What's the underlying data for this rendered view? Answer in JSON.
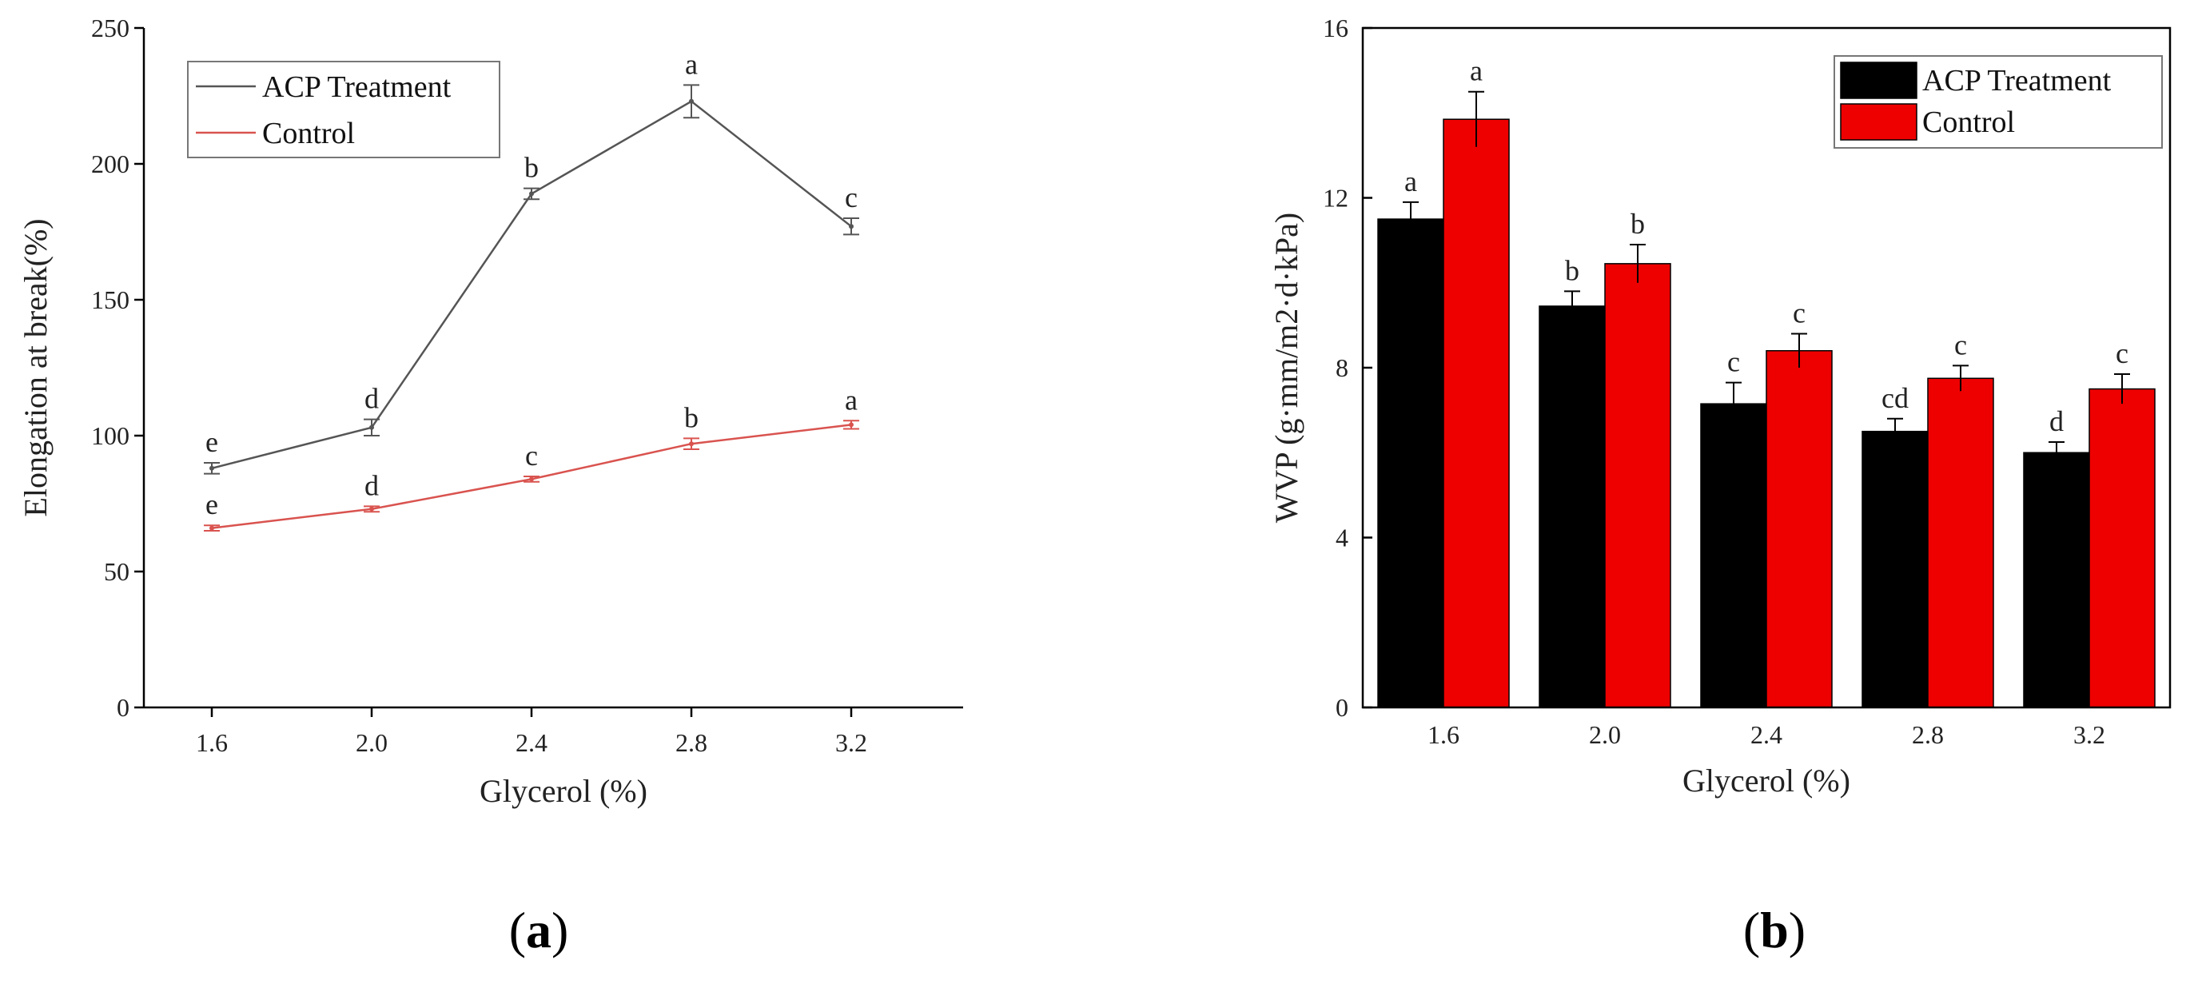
{
  "chart_data": [
    {
      "type": "line",
      "panel_label": "a",
      "xlabel": "Glycerol (%)",
      "ylabel": "Elongation at break(%)",
      "x": [
        "1.6",
        "2.0",
        "2.4",
        "2.8",
        "3.2"
      ],
      "ylim": [
        0,
        250
      ],
      "yticks": [
        0,
        50,
        100,
        150,
        200,
        250
      ],
      "grid": false,
      "legend_position": "top-left",
      "series": [
        {
          "name": "ACP Treatment",
          "color": "#555555",
          "values": [
            88,
            103,
            189,
            223,
            177
          ],
          "errors": [
            2,
            3,
            2,
            6,
            3
          ],
          "letters": [
            "e",
            "d",
            "b",
            "a",
            "c"
          ]
        },
        {
          "name": "Control",
          "color": "#d9534f",
          "values": [
            66,
            73,
            84,
            97,
            104
          ],
          "errors": [
            1,
            1,
            1,
            2,
            1.5
          ],
          "letters": [
            "e",
            "d",
            "c",
            "b",
            "a"
          ]
        }
      ]
    },
    {
      "type": "bar",
      "panel_label": "b",
      "xlabel": "Glycerol (%)",
      "ylabel": "WVP (g·mm/m2·d·kPa)",
      "categories": [
        "1.6",
        "2.0",
        "2.4",
        "2.8",
        "3.2"
      ],
      "ylim": [
        0,
        16
      ],
      "yticks": [
        0,
        4,
        8,
        12,
        16
      ],
      "grid": false,
      "legend_position": "top-right",
      "series": [
        {
          "name": "ACP Treatment",
          "color": "#000000",
          "values": [
            11.5,
            9.45,
            7.15,
            6.5,
            6.0
          ],
          "errors": [
            0.4,
            0.35,
            0.5,
            0.3,
            0.25
          ],
          "letters": [
            "a",
            "b",
            "c",
            "cd",
            "d"
          ]
        },
        {
          "name": "Control",
          "color": "#ee0000",
          "values": [
            13.85,
            10.45,
            8.4,
            7.75,
            7.5
          ],
          "errors": [
            0.65,
            0.45,
            0.4,
            0.3,
            0.35
          ],
          "letters": [
            "a",
            "b",
            "c",
            "c",
            "c"
          ]
        }
      ]
    }
  ]
}
